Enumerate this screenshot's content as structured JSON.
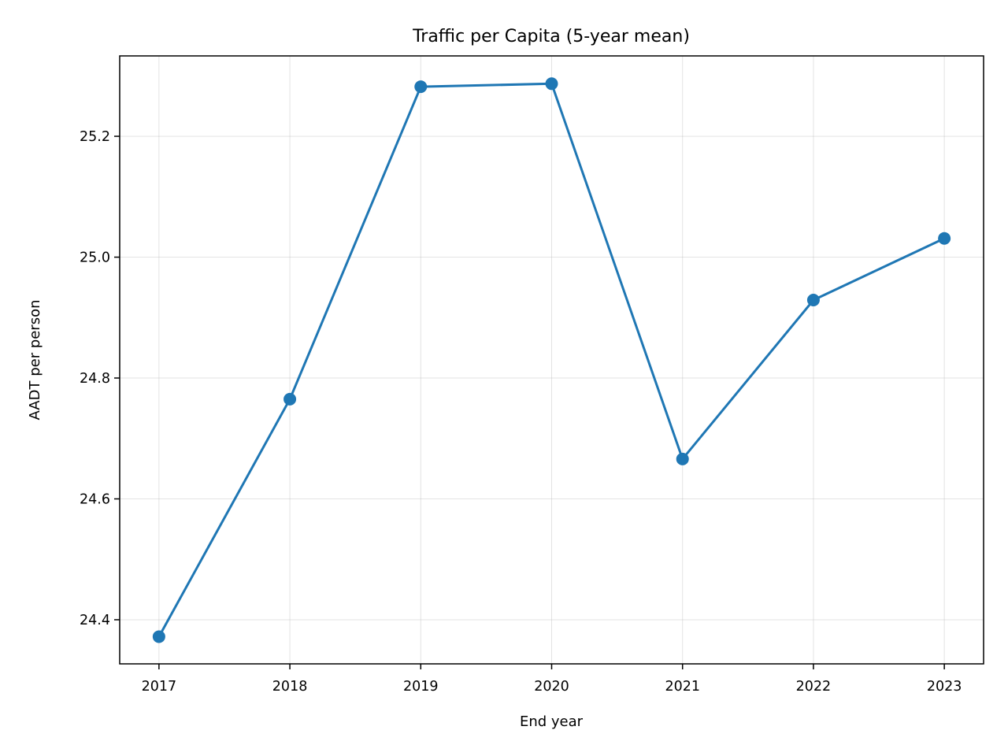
{
  "chart_data": {
    "type": "line",
    "title": "Traffic per Capita (5-year mean)",
    "xlabel": "End year",
    "ylabel": "AADT per person",
    "x": [
      2017,
      2018,
      2019,
      2020,
      2021,
      2022,
      2023
    ],
    "y": [
      24.372,
      24.765,
      25.282,
      25.287,
      24.666,
      24.929,
      25.031
    ],
    "xticks": [
      "2017",
      "2018",
      "2019",
      "2020",
      "2021",
      "2022",
      "2023"
    ],
    "yticks": [
      "24.4",
      "24.6",
      "24.8",
      "25.0",
      "25.2"
    ],
    "ytick_values": [
      24.4,
      24.6,
      24.8,
      25.0,
      25.2
    ],
    "xlim": [
      2016.7,
      2023.3
    ],
    "ylim": [
      24.327,
      25.333
    ],
    "grid": true,
    "line_color": "#1f77b4",
    "marker": "circle"
  }
}
